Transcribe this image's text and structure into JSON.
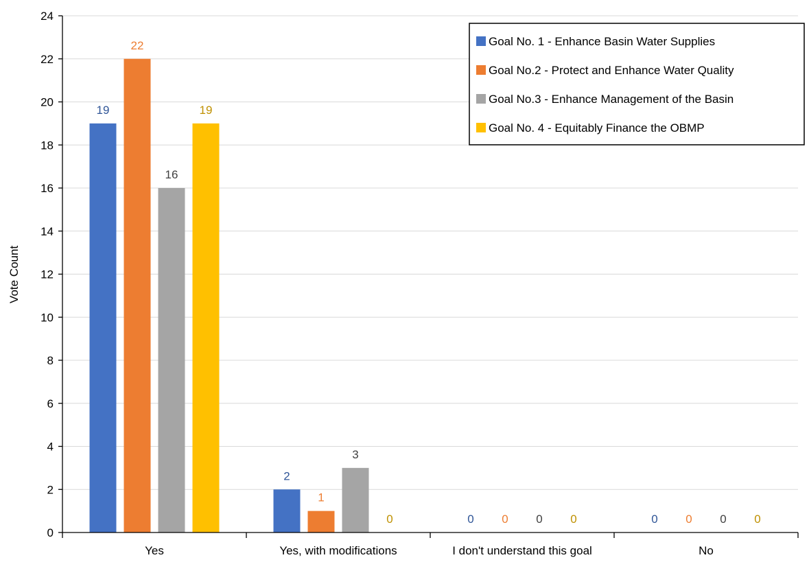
{
  "chart_data": {
    "type": "bar",
    "categories": [
      "Yes",
      "Yes, with modifications",
      "I don't understand this goal",
      "No"
    ],
    "series": [
      {
        "name": "Goal No. 1 - Enhance Basin Water Supplies",
        "color": "#4472C4",
        "label_color": "#2F5597",
        "values": [
          19,
          2,
          0,
          0
        ]
      },
      {
        "name": "Goal No.2 - Protect and Enhance Water Quality",
        "color": "#ED7D31",
        "label_color": "#ED7D31",
        "values": [
          22,
          1,
          0,
          0
        ]
      },
      {
        "name": "Goal No.3 - Enhance Management of the Basin",
        "color": "#A5A5A5",
        "label_color": "#404040",
        "values": [
          16,
          3,
          0,
          0
        ]
      },
      {
        "name": "Goal No. 4 - Equitably Finance the OBMP",
        "color": "#FFC000",
        "label_color": "#BF9000",
        "values": [
          19,
          0,
          0,
          0
        ]
      }
    ],
    "title": "",
    "xlabel": "",
    "ylabel": "Vote Count",
    "ylim": [
      0,
      24
    ],
    "yticks": [
      0,
      2,
      4,
      6,
      8,
      10,
      12,
      14,
      16,
      18,
      20,
      22,
      24
    ],
    "grid": "horizontal",
    "legend_position": "top-right"
  }
}
